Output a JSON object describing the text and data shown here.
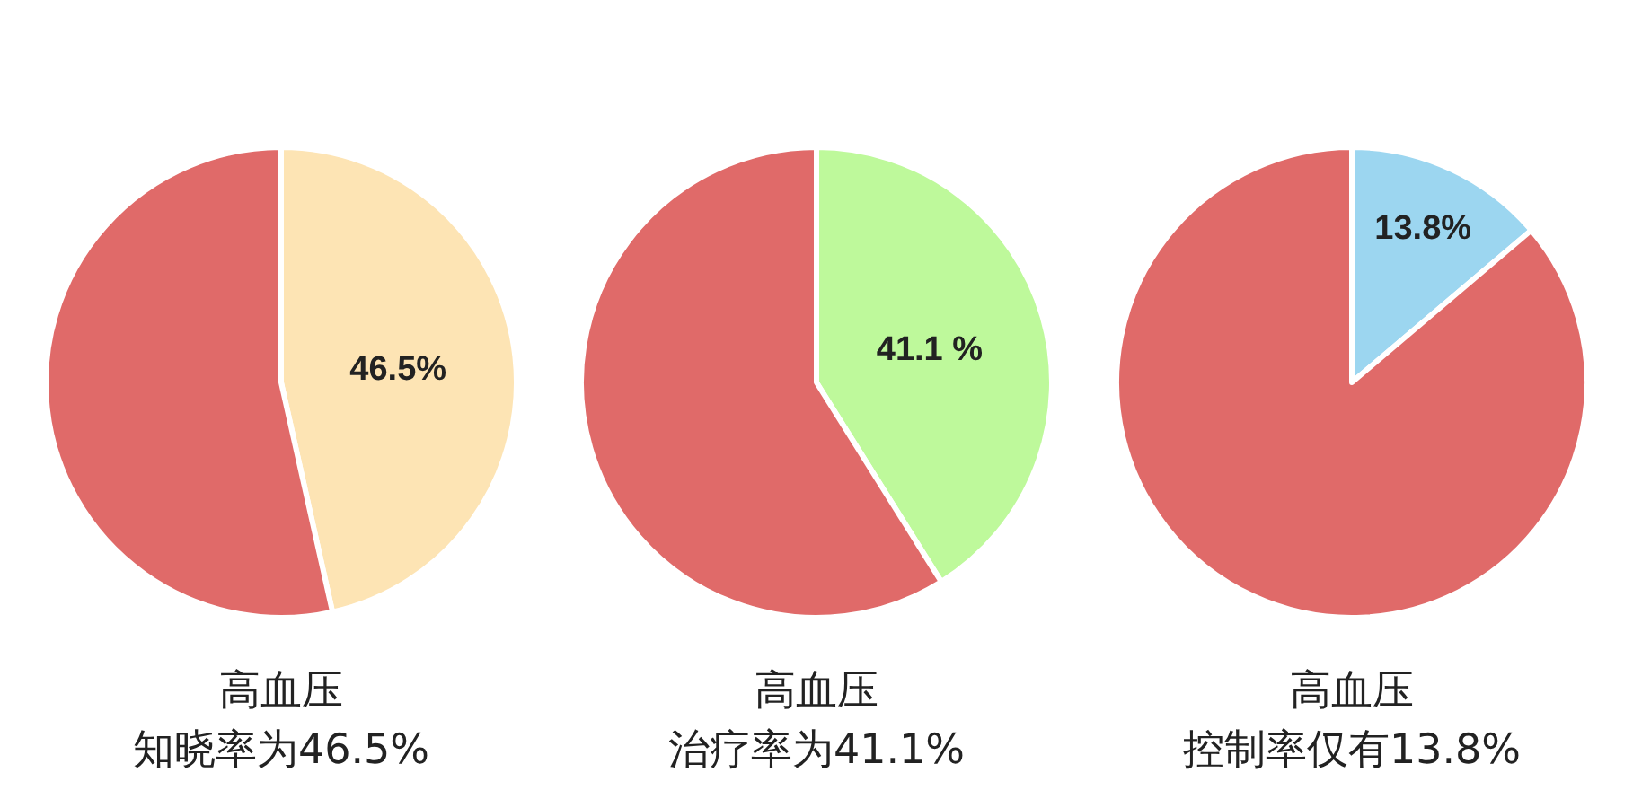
{
  "chart_data": [
    {
      "type": "pie",
      "title": "高血压",
      "subtitle": "知晓率为46.5%",
      "categories": [
        null,
        null
      ],
      "values": [
        46.5,
        53.5
      ],
      "colors": [
        "#fde4b4",
        "#e06a69"
      ],
      "value_labels": [
        "46.5%",
        null
      ]
    },
    {
      "type": "pie",
      "title": "高血压",
      "subtitle": "治疗率为41.1%",
      "categories": [
        null,
        null
      ],
      "values": [
        41.1,
        58.9
      ],
      "colors": [
        "#bef99b",
        "#e06a69"
      ],
      "value_labels": [
        "41.1 %",
        null
      ]
    },
    {
      "type": "pie",
      "title": "高血压",
      "subtitle": "控制率仅有13.8%",
      "categories": [
        null,
        null
      ],
      "values": [
        13.8,
        86.2
      ],
      "colors": [
        "#9cd6f0",
        "#e06a69"
      ],
      "value_labels": [
        "13.8%",
        null
      ]
    }
  ]
}
